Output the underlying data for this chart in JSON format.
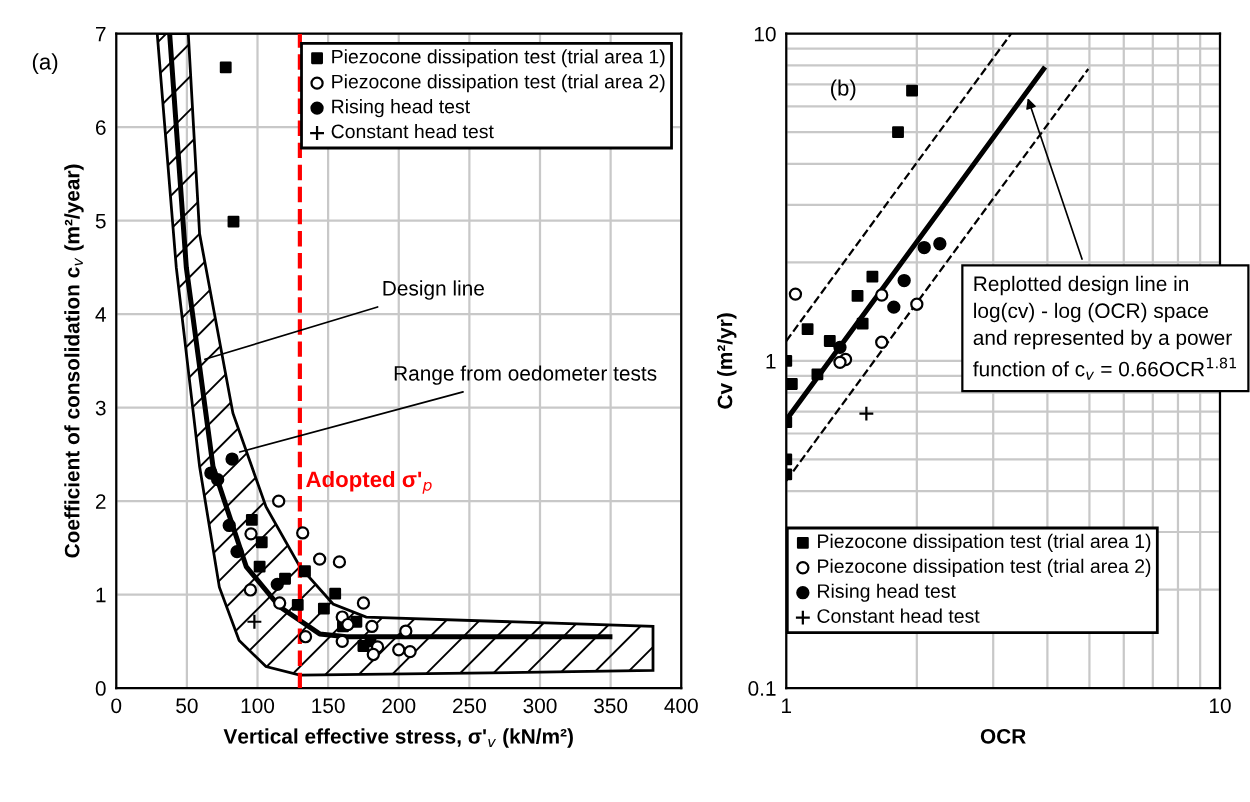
{
  "chart_data": [
    {
      "type": "scatter",
      "xlabel": "Vertical effective stress, σ'$_{v}$ (kN/m²)",
      "ylabel": "Coefficient of consolidation c$_{v}$ (m²/year)",
      "xlim": [
        0,
        400
      ],
      "xticks": [
        0,
        50,
        100,
        150,
        200,
        250,
        300,
        350,
        400
      ],
      "ylim": [
        0,
        7
      ],
      "yticks": [
        0,
        1,
        2,
        3,
        4,
        5,
        6,
        7
      ],
      "grid": true,
      "legend": "top right",
      "series": [
        {
          "type": "area",
          "color": "#000000",
          "x": [
            29,
            42.5,
            59,
            73,
            87,
            106,
            130,
            250,
            380,
            380,
            177,
            153.5,
            130,
            106,
            82.6,
            59,
            51
          ],
          "values": [
            7,
            4.5,
            2.37,
            1.08,
            0.51,
            0.23,
            0.14,
            0.16,
            0.19,
            0.66,
            0.76,
            0.9,
            1.3,
            1.94,
            2.94,
            4.86,
            7
          ]
        },
        {
          "type": "line",
          "color": "#000000",
          "x": [
            37.8,
            49.6,
            68.5,
            92,
            115.7,
            144,
            163,
            349.5
          ],
          "values": [
            7,
            4.5,
            2.37,
            1.3,
            0.87,
            0.58,
            0.55,
            0.55
          ]
        },
        {
          "name": "Piezocone dissipation test (trial area 1)",
          "marker": "square",
          "color": "#000000",
          "x": [
            77.5,
            83,
            96,
            103,
            101.5,
            119.5,
            128.5,
            133.6,
            155,
            147,
            160.5,
            170,
            175,
            180
          ],
          "values": [
            6.64,
            4.99,
            1.8,
            1.56,
            1.3,
            1.17,
            0.89,
            1.25,
            1.01,
            0.85,
            0.66,
            0.71,
            0.45,
            0.5
          ]
        },
        {
          "name": "Piezocone dissipation test (trial area 2)",
          "marker": "circle",
          "color": "#ffffff",
          "x": [
            115,
            132,
            95.4,
            144,
            158,
            95,
            175,
            115.7,
            134,
            160,
            164,
            181,
            160,
            185,
            182,
            200,
            208,
            205
          ],
          "values": [
            2.0,
            1.66,
            1.65,
            1.38,
            1.35,
            1.05,
            0.91,
            0.91,
            0.55,
            0.76,
            0.68,
            0.66,
            0.5,
            0.44,
            0.36,
            0.41,
            0.39,
            0.61
          ]
        },
        {
          "name": "Rising head test",
          "marker": "circle",
          "color": "#000000",
          "x": [
            82,
            67,
            71.8,
            80,
            85.5,
            114
          ],
          "values": [
            2.45,
            2.3,
            2.23,
            1.74,
            1.46,
            1.11
          ]
        },
        {
          "name": "Constant head test",
          "marker": "cross",
          "color": "#000000",
          "x": [
            97.8
          ],
          "values": [
            0.71
          ]
        }
      ],
      "ref_lines": [
        {
          "axis": "x",
          "value": 130,
          "label": "Adopted σ'$_{p}$",
          "color": "#ff0000",
          "line_style": "dashed"
        }
      ],
      "annotations": [
        "(a)",
        {
          "text": "Design line",
          "x": 59,
          "y": 3.5
        },
        {
          "text": "Range from oedometer tests",
          "x": 83.6,
          "y": 2.51
        }
      ]
    },
    {
      "type": "scatter",
      "xlabel": "OCR",
      "ylabel": "Cv (m²/yr)",
      "log": "xy",
      "xlim": [
        1,
        10
      ],
      "xticks": [
        1,
        10
      ],
      "ylim": [
        0.1,
        10
      ],
      "yticks": [
        0.1,
        1,
        10
      ],
      "grid": true,
      "legend": "bottom left",
      "series": [
        {
          "type": "line",
          "line_style": "dashed",
          "color": "#000000",
          "x": [
            1,
            3.3
          ],
          "values": [
            1.15,
            10
          ]
        },
        {
          "type": "line",
          "line_style": "dashed",
          "color": "#000000",
          "x": [
            1,
            4.97
          ],
          "values": [
            0.43,
            7.8
          ]
        },
        {
          "type": "line",
          "color": "#000000",
          "x": [
            1,
            3.92
          ],
          "values": [
            0.66,
            7.8
          ]
        },
        {
          "name": "Piezocone dissipation test (trial area 1)",
          "marker": "square",
          "color": "#000000",
          "x": [
            1.95,
            1.81,
            1.58,
            1.46,
            1.5,
            1.26,
            1.18,
            1.12,
            1.0,
            1.03,
            1.0,
            1.0,
            1.0
          ],
          "values": [
            6.7,
            5.0,
            1.81,
            1.58,
            1.3,
            1.15,
            0.91,
            1.25,
            1.0,
            0.85,
            0.65,
            0.5,
            0.45
          ]
        },
        {
          "name": "Piezocone dissipation test (trial area 2)",
          "marker": "circle",
          "color": "#ffffff",
          "x": [
            1.05,
            1.66,
            2.0,
            1.66,
            1.37,
            1.33
          ],
          "values": [
            1.6,
            1.59,
            1.49,
            1.14,
            1.01,
            0.99
          ]
        },
        {
          "name": "Rising head test",
          "marker": "circle",
          "color": "#000000",
          "x": [
            2.08,
            2.26,
            1.87,
            1.77,
            1.33
          ],
          "values": [
            2.22,
            2.28,
            1.76,
            1.46,
            1.1
          ]
        },
        {
          "name": "Constant head test",
          "marker": "cross",
          "color": "#000000",
          "x": [
            1.53
          ],
          "values": [
            0.69
          ]
        }
      ],
      "annotations": [
        "(b)",
        {
          "text": "Replotted design line in log(cv) - log (OCR) space and represented by a power function of c$_{v}$ = 0.66OCR$^{1.81}$",
          "x": 3.57,
          "y": 6.6
        }
      ]
    }
  ]
}
